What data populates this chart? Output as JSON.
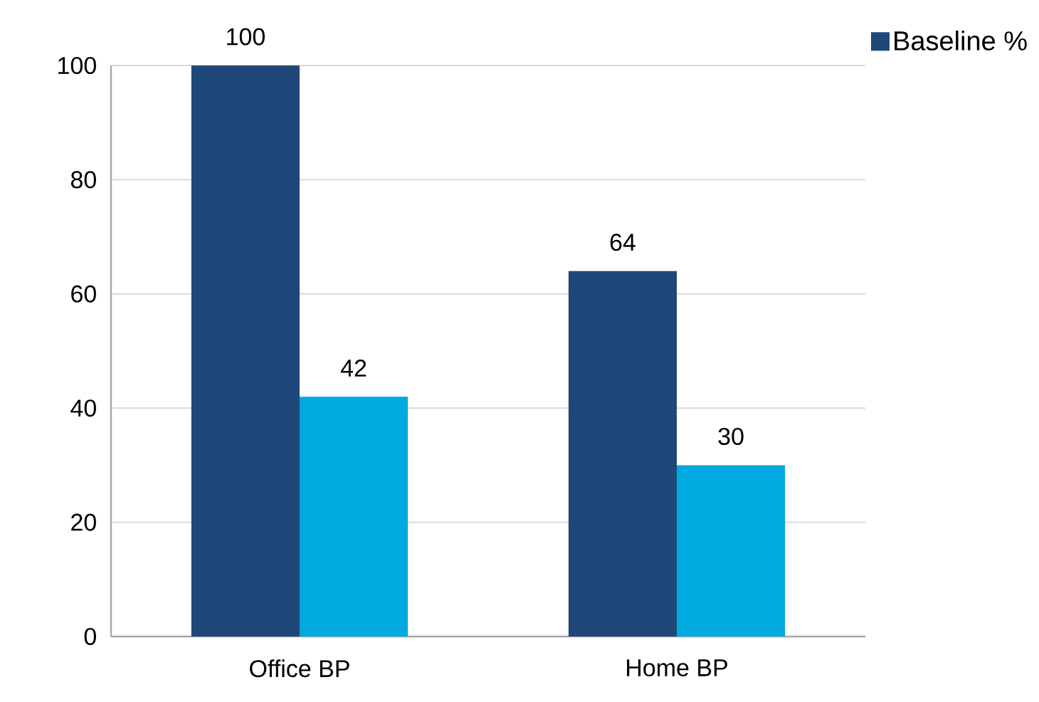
{
  "chart_data": {
    "type": "bar",
    "categories": [
      "Office BP",
      "Home BP"
    ],
    "series": [
      {
        "name": "Baseline %",
        "color": "#1f477a",
        "values": [
          100,
          64
        ]
      },
      {
        "color": "#00a9e0",
        "values": [
          42,
          30
        ]
      }
    ],
    "ylim": [
      0,
      100
    ],
    "yticks": [
      0,
      20,
      40,
      60,
      80,
      100
    ],
    "grid": "y",
    "legend": "top right",
    "data_labels": true
  }
}
